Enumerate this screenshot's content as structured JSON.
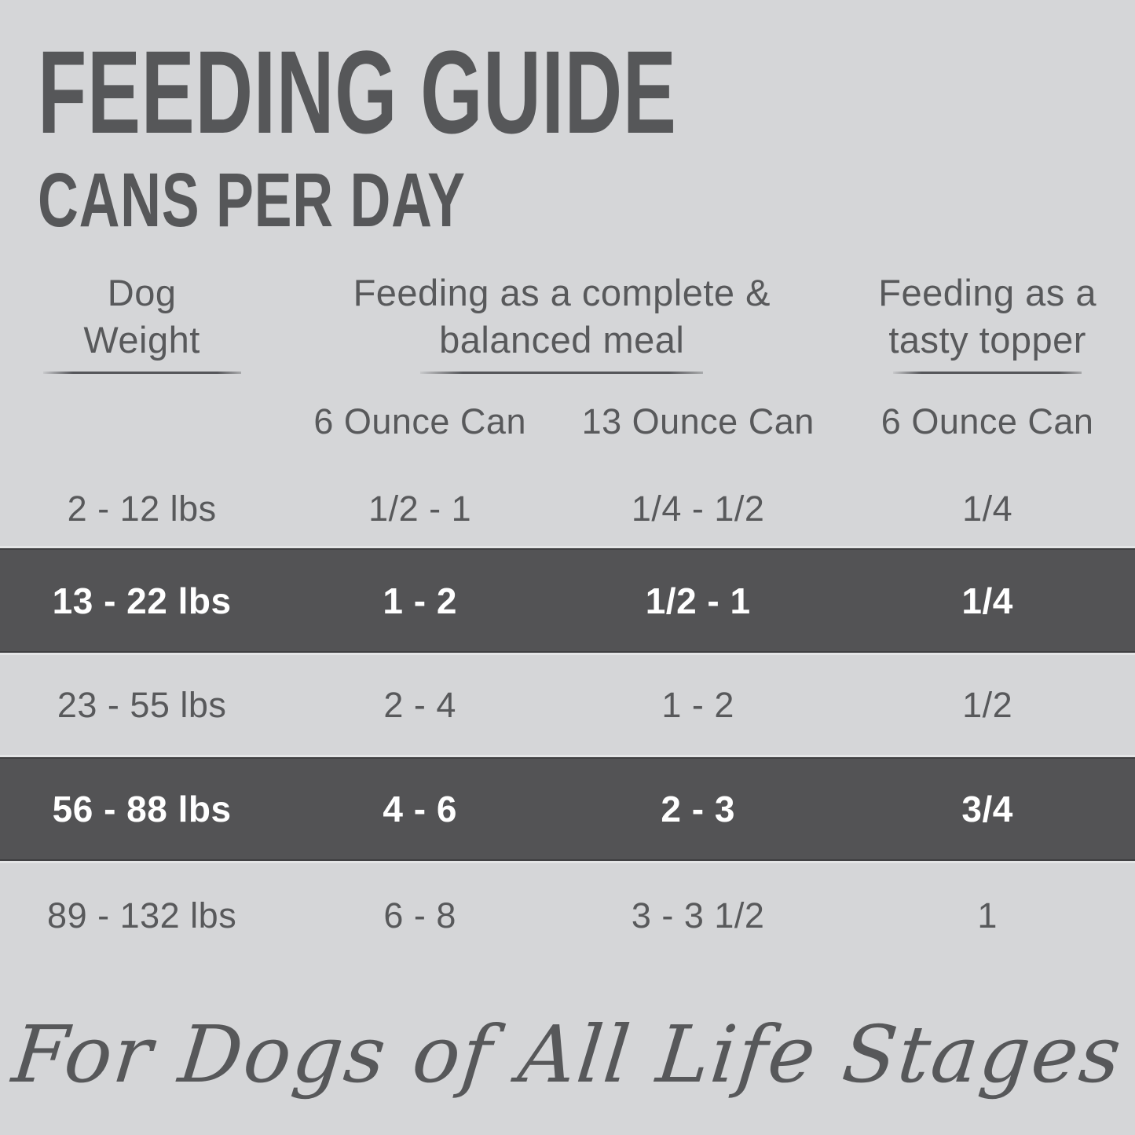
{
  "header": {
    "title": "FEEDING GUIDE",
    "subtitle": "CANS PER DAY"
  },
  "table": {
    "groups": {
      "weight": {
        "line1": "Dog",
        "line2": "Weight"
      },
      "meal": {
        "line1": "Feeding as a complete &",
        "line2": "balanced meal"
      },
      "topper": {
        "line1": "Feeding as a",
        "line2": "tasty topper"
      }
    },
    "subheaders": {
      "six_oz": "6 Ounce Can",
      "thirteen_oz": "13 Ounce Can",
      "topper_six_oz": "6 Ounce Can"
    },
    "rows": [
      {
        "weight": "2 - 12 lbs",
        "six_oz": "1/2 - 1",
        "thirteen_oz": "1/4 - 1/2",
        "topper": "1/4",
        "highlighted": false
      },
      {
        "weight": "13 - 22 lbs",
        "six_oz": "1 - 2",
        "thirteen_oz": "1/2 - 1",
        "topper": "1/4",
        "highlighted": true
      },
      {
        "weight": "23 - 55 lbs",
        "six_oz": "2 - 4",
        "thirteen_oz": "1 - 2",
        "topper": "1/2",
        "highlighted": false
      },
      {
        "weight": "56 - 88 lbs",
        "six_oz": "4 - 6",
        "thirteen_oz": "2 - 3",
        "topper": "3/4",
        "highlighted": true
      },
      {
        "weight": "89 - 132 lbs",
        "six_oz": "6 - 8",
        "thirteen_oz": "3 - 3 1/2",
        "topper": "1",
        "highlighted": false
      }
    ]
  },
  "footer": {
    "tagline": "For Dogs of All Life Stages"
  },
  "colors": {
    "background": "#d5d6d8",
    "highlight_row": "#535355",
    "text": "#58595b",
    "highlight_text": "#ffffff"
  }
}
